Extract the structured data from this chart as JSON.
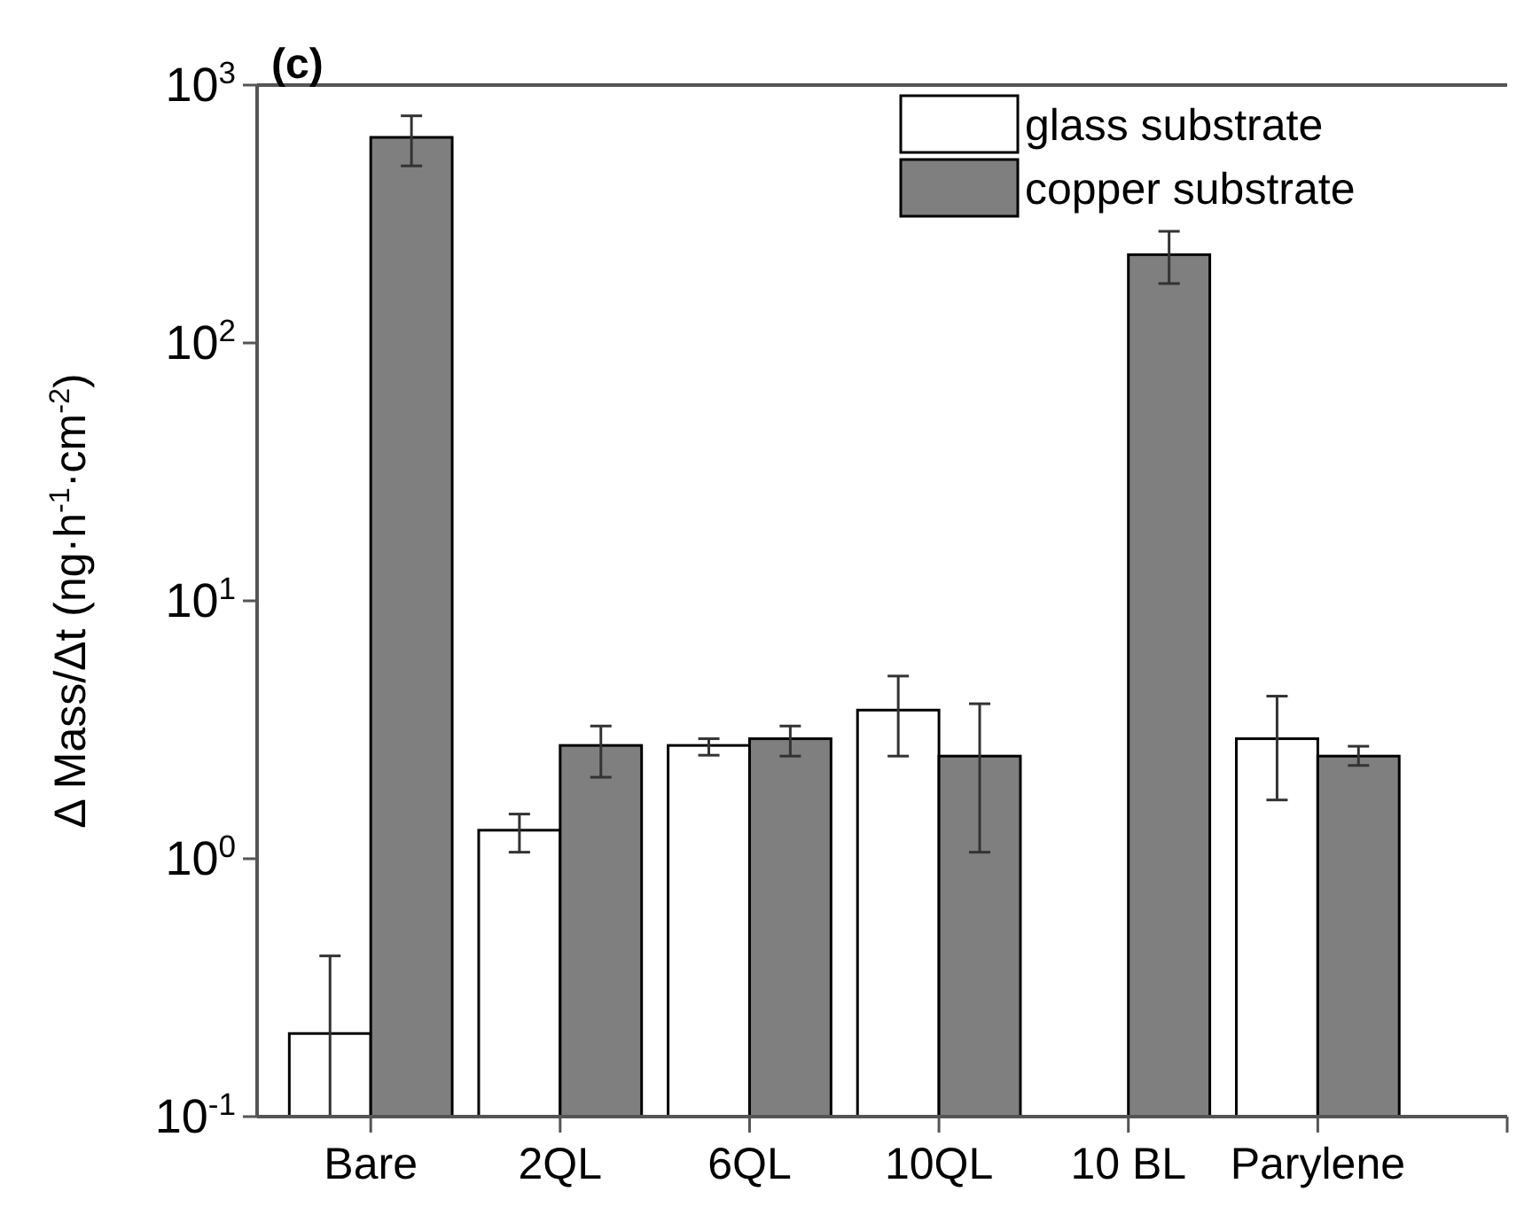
{
  "chart_data": {
    "type": "bar",
    "title": "(c)",
    "ylabel": "Δ Mass/Δt (ng·h$^{-1}$·cm$^{-2}$)",
    "categories": [
      "Bare",
      "2QL",
      "6QL",
      "10QL",
      "10 BL",
      "Parylene"
    ],
    "series": [
      {
        "name": "glass substrate",
        "color": "#ffffff",
        "values": [
          0.21,
          1.29,
          2.75,
          3.77,
          null,
          2.92
        ],
        "errors": [
          [
            0.1,
            0.42
          ],
          [
            1.06,
            1.49
          ],
          [
            2.52,
            2.92
          ],
          [
            2.5,
            5.11
          ],
          null,
          [
            1.69,
            4.27
          ]
        ]
      },
      {
        "name": "copper substrate",
        "color": "#7f7f7f",
        "values": [
          627,
          2.75,
          2.92,
          2.5,
          220,
          2.5
        ],
        "errors": [
          [
            486,
            760
          ],
          [
            2.07,
            3.27
          ],
          [
            2.5,
            3.27
          ],
          [
            1.06,
            3.99
          ],
          [
            170,
            271
          ],
          [
            2.3,
            2.73
          ]
        ]
      }
    ],
    "log": true,
    "ylim": [
      0.1,
      1000
    ],
    "yticks": [
      {
        "value": 0.1,
        "label": "10$^{-1}$"
      },
      {
        "value": 1,
        "label": "10$^{0}$"
      },
      {
        "value": 10,
        "label": "10$^{1}$"
      },
      {
        "value": 100,
        "label": "10$^{2}$"
      },
      {
        "value": 1000,
        "label": "10$^{3}$"
      }
    ],
    "legend": "top right",
    "grid": false
  }
}
